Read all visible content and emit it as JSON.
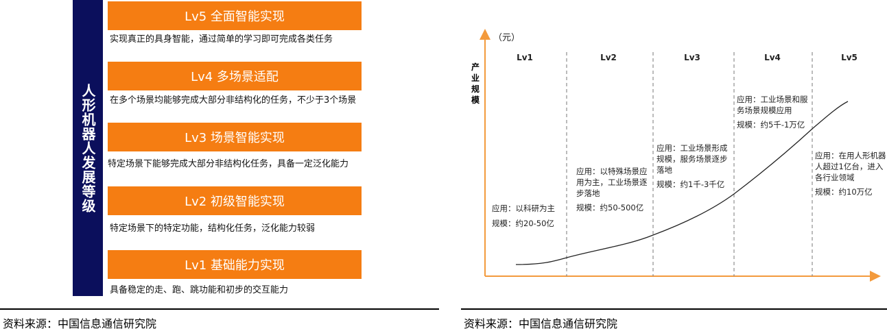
{
  "left": {
    "side_label": "人形机器人发展等级",
    "levels": [
      {
        "title": "Lv5 全面智能实现",
        "desc": "实现真正的具身智能，通过简单的学习即可完成各类任务"
      },
      {
        "title": "Lv4 多场景适配",
        "desc": "在多个场景均能够完成大部分非结构化的任务，不少于3个场景"
      },
      {
        "title": "Lv3 场景智能实现",
        "desc": "特定场景下能够完成大部分非结构化任务，具备一定泛化能力"
      },
      {
        "title": "Lv2 初级智能实现",
        "desc": "特定场景下的特定功能，结构化任务，泛化能力较弱"
      },
      {
        "title": "Lv1 基础能力实现",
        "desc": "具备稳定的走、跑、跳功能和初步的交互能力"
      }
    ],
    "source": "资料来源：中国信息通信研究院"
  },
  "right": {
    "y_unit": "（元）",
    "y_label": "产业规模",
    "stages": [
      {
        "label": "Lv1",
        "app": "应用：以科研为主",
        "scale": "规模：约20-50亿"
      },
      {
        "label": "Lv2",
        "app": "应用：以特殊场景应用为主，工业场景逐步落地",
        "scale": "规模：约50-500亿"
      },
      {
        "label": "Lv3",
        "app": "应用：工业场景形成规模，服务场景逐步落地",
        "scale": "规模：约1千-3千亿"
      },
      {
        "label": "Lv4",
        "app": "应用：工业场景和服务场景规模应用",
        "scale": "规模：约5千-1万亿"
      },
      {
        "label": "Lv5",
        "app": "应用：在用人形机器人超过1亿台，进入各行业领域",
        "scale": "规模：约10万亿"
      }
    ],
    "source": "资料来源：中国信息通信研究院"
  },
  "colors": {
    "orange": "#f57d12",
    "navy": "#0b0f5c",
    "axis": "#f39a3c"
  }
}
